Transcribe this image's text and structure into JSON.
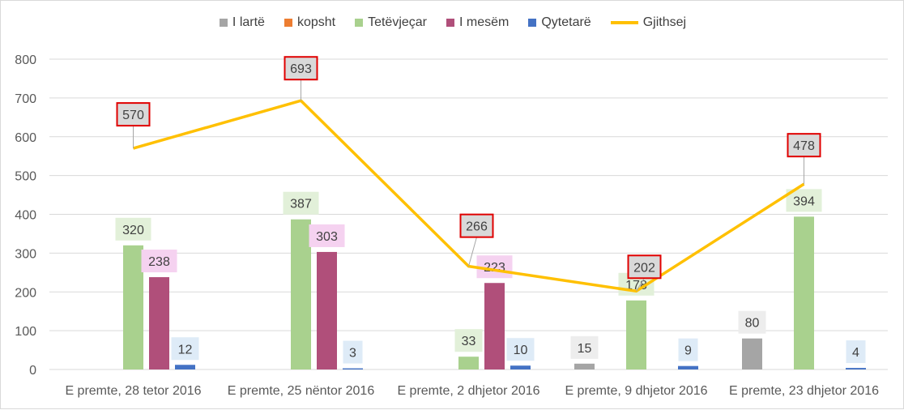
{
  "chart_data": {
    "type": "bar",
    "categories": [
      "E premte, 28 tetor 2016",
      "E premte, 25 nëntor 2016",
      "E premte, 2 dhjetor 2016",
      "E premte, 9 dhjetor 2016",
      "E premte, 23 dhjetor 2016"
    ],
    "series": [
      {
        "name": "I lartë",
        "type": "bar",
        "color": "#a5a5a5",
        "label_bg": "#ededed",
        "values": [
          null,
          null,
          null,
          15,
          80
        ]
      },
      {
        "name": "kopsht",
        "type": "bar",
        "color": "#ed7d31",
        "label_bg": "#fbe5d6",
        "values": [
          null,
          null,
          null,
          null,
          null
        ]
      },
      {
        "name": "Tetëvjeçar",
        "type": "bar",
        "color": "#a9d18e",
        "label_bg": "#e2f0d9",
        "values": [
          320,
          387,
          33,
          178,
          394
        ]
      },
      {
        "name": "I mesëm",
        "type": "bar",
        "color": "#b04f7a",
        "label_bg": "#f5d2f0",
        "values": [
          238,
          303,
          223,
          null,
          null
        ]
      },
      {
        "name": "Qytetarë",
        "type": "bar",
        "color": "#4472c4",
        "label_bg": "#deebf7",
        "values": [
          12,
          3,
          10,
          9,
          4
        ]
      },
      {
        "name": "Gjithsej",
        "type": "line",
        "color": "#ffc000",
        "values": [
          570,
          693,
          266,
          202,
          478
        ]
      }
    ],
    "ylim": [
      0,
      800
    ],
    "yticks": [
      0,
      100,
      200,
      300,
      400,
      500,
      600,
      700,
      800
    ],
    "grid": true,
    "legend_position": "top",
    "title": "",
    "xlabel": "",
    "ylabel": ""
  }
}
